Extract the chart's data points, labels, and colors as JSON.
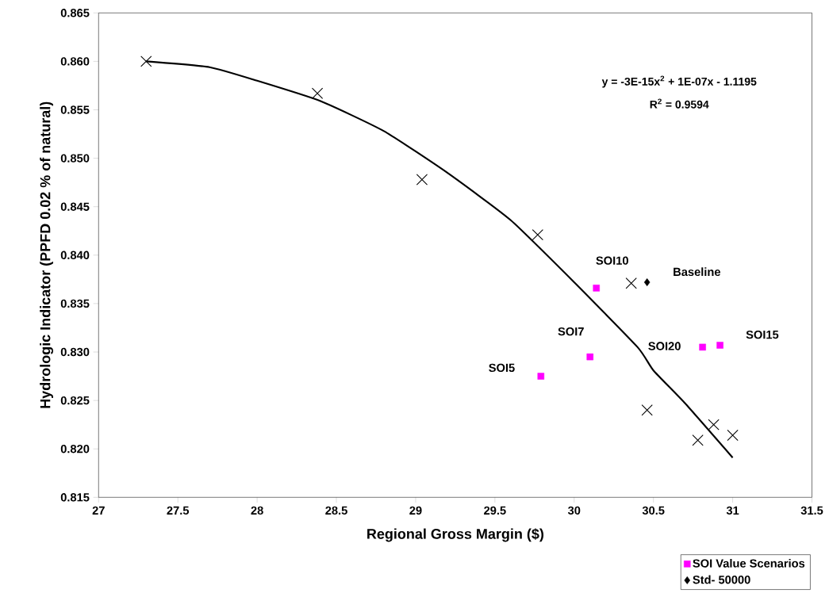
{
  "chart_data": {
    "type": "scatter",
    "xlabel": "Regional Gross Margin ($)",
    "ylabel": "Hydrologic Indicator (PPFD 0.02 % of natural)",
    "xlim": [
      27,
      31.5
    ],
    "xticks": [
      27,
      27.5,
      28,
      28.5,
      29,
      29.5,
      30,
      30.5,
      31,
      31.5
    ],
    "ylim": [
      0.815,
      0.865
    ],
    "yticks": [
      {
        "value": 0.815,
        "label": "0.815"
      },
      {
        "value": 0.82,
        "label": "0.820"
      },
      {
        "value": 0.825,
        "label": "0.825"
      },
      {
        "value": 0.83,
        "label": "0.830"
      },
      {
        "value": 0.835,
        "label": "0.835"
      },
      {
        "value": 0.84,
        "label": "0.840"
      },
      {
        "value": 0.845,
        "label": "0.845"
      },
      {
        "value": 0.85,
        "label": "0.850"
      },
      {
        "value": 0.855,
        "label": "0.855"
      },
      {
        "value": 0.86,
        "label": "0.860"
      },
      {
        "value": 0.865,
        "label": "0.865"
      }
    ],
    "legend": "bottom right",
    "series": [
      {
        "marker": "cross",
        "color": "#000000",
        "x": [
          27.3,
          28.38,
          29.04,
          29.77,
          30.36,
          30.46,
          30.78,
          30.88,
          31.0
        ],
        "values": [
          0.86,
          0.8567,
          0.8478,
          0.8421,
          0.8371,
          0.824,
          0.8209,
          0.8225,
          0.8214
        ]
      },
      {
        "type": "line",
        "marker": "none",
        "color": "#000000",
        "x": [
          27.3,
          27.7,
          28.0,
          28.4,
          28.8,
          29.2,
          29.6,
          30.0,
          30.4,
          30.5,
          30.7,
          31.0
        ],
        "values": [
          0.86,
          0.8594,
          0.858,
          0.8559,
          0.8528,
          0.8485,
          0.8436,
          0.8372,
          0.8305,
          0.8281,
          0.8247,
          0.8191
        ]
      },
      {
        "marker": "square",
        "color": "#ff00ff",
        "name": "SOI Value Scenarios",
        "x": [
          30.14,
          30.1,
          29.79,
          30.81,
          30.92
        ],
        "values": [
          0.8366,
          0.8295,
          0.8275,
          0.8305,
          0.8307
        ]
      },
      {
        "marker": "diamond",
        "color": "#000000",
        "name": "Std- 50000",
        "x": [
          30.46
        ],
        "values": [
          0.8372
        ]
      }
    ],
    "annotations": [
      "y = -3E-15x$^{2}$ + 1E-07x - 1.1195",
      "R$^{2}$ = 0.9594",
      {
        "text": "SOI10",
        "x": 30.14,
        "y": 0.8366
      },
      {
        "text": "SOI7",
        "x": 30.1,
        "y": 0.8295
      },
      {
        "text": "SOI5",
        "x": 29.79,
        "y": 0.8275
      },
      {
        "text": "SOI20",
        "x": 30.81,
        "y": 0.8305
      },
      {
        "text": "SOI15",
        "x": 30.92,
        "y": 0.8307
      },
      {
        "text": "Baseline",
        "x": 30.46,
        "y": 0.8372
      }
    ]
  }
}
